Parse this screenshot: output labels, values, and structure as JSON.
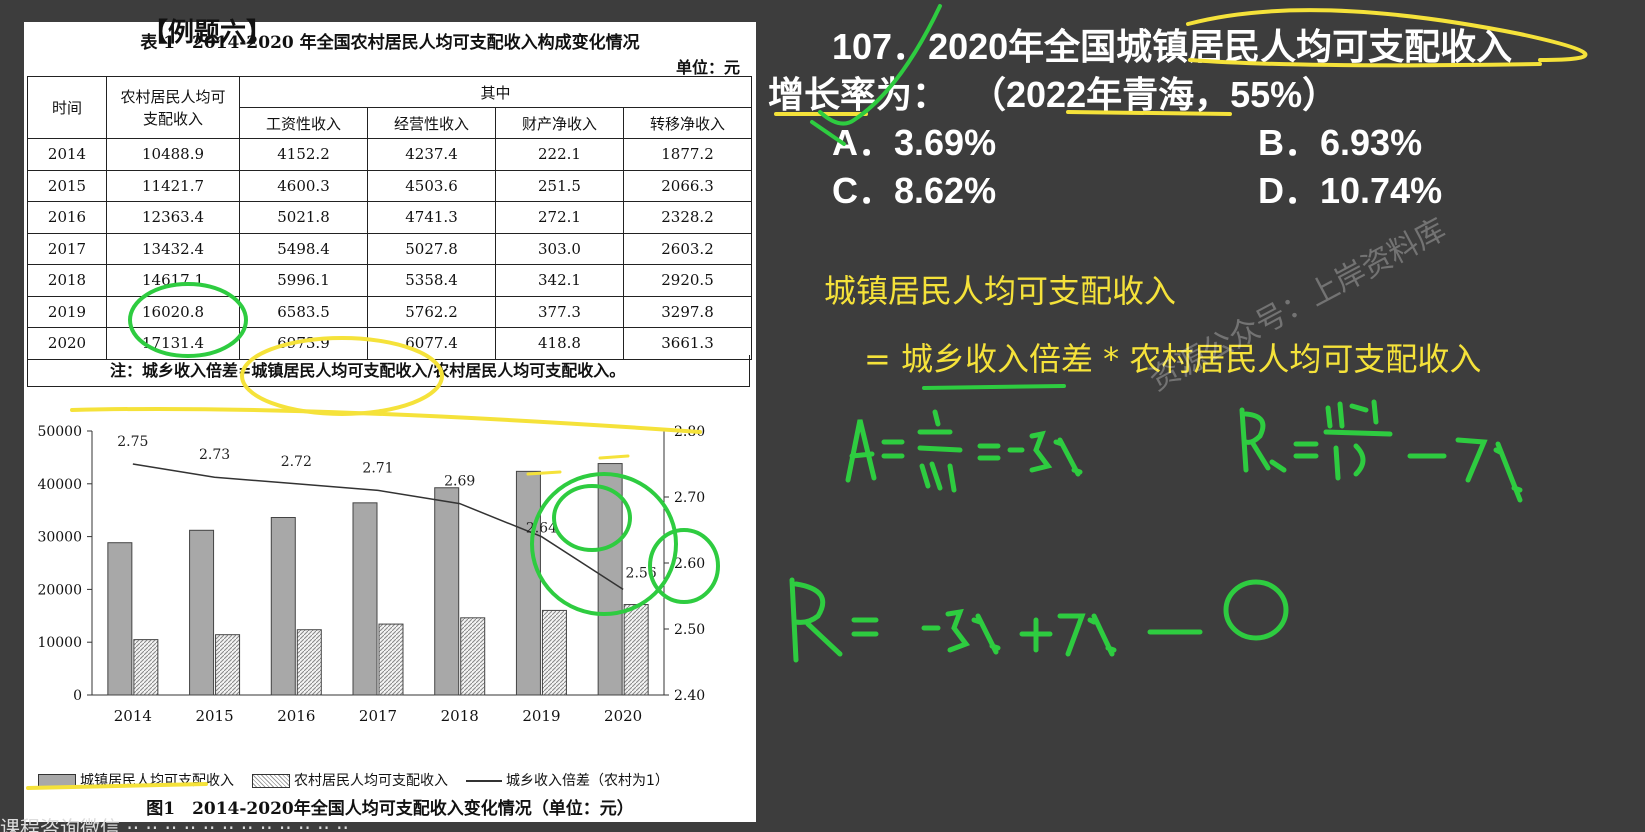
{
  "header_cut": "【例题六】",
  "table": {
    "title": "表 1　2014-2020 年全国农村居民人均可支配收入构成变化情况",
    "unit": "单位：元",
    "col_time": "时间",
    "col_total": "农村居民人均可支配收入",
    "col_group": "其中",
    "sub_cols": [
      "工资性收入",
      "经营性收入",
      "财产净收入",
      "转移净收入"
    ],
    "rows": [
      [
        "2014",
        "10488.9",
        "4152.2",
        "4237.4",
        "222.1",
        "1877.2"
      ],
      [
        "2015",
        "11421.7",
        "4600.3",
        "4503.6",
        "251.5",
        "2066.3"
      ],
      [
        "2016",
        "12363.4",
        "5021.8",
        "4741.3",
        "272.1",
        "2328.2"
      ],
      [
        "2017",
        "13432.4",
        "5498.4",
        "5027.8",
        "303.0",
        "2603.2"
      ],
      [
        "2018",
        "14617.1",
        "5996.1",
        "5358.4",
        "342.1",
        "2920.5"
      ],
      [
        "2019",
        "16020.8",
        "6583.5",
        "5762.2",
        "377.3",
        "3297.8"
      ],
      [
        "2020",
        "17131.4",
        "6973.9",
        "6077.4",
        "418.8",
        "3661.3"
      ]
    ],
    "note": "注：城乡收入倍差=城镇居民人均可支配收入/农村居民人均可支配收入。"
  },
  "chart_data": {
    "type": "bar",
    "categories": [
      "2014",
      "2015",
      "2016",
      "2017",
      "2018",
      "2019",
      "2020"
    ],
    "series": [
      {
        "name": "城镇居民人均可支配收入",
        "values": [
          28844,
          31195,
          33616,
          36396,
          39251,
          42359,
          43834
        ]
      },
      {
        "name": "农村居民人均可支配收入",
        "values": [
          10489,
          11422,
          12363,
          13432,
          14617,
          16021,
          17131
        ]
      }
    ],
    "line": {
      "name": "城乡收入倍差（农村为1）",
      "values": [
        2.75,
        2.73,
        2.72,
        2.71,
        2.69,
        2.64,
        2.56
      ],
      "labels": [
        "2.75",
        "2.73",
        "2.72",
        "2.71",
        "2.69",
        "2.64",
        "2.56"
      ]
    },
    "y_left_ticks": [
      "0",
      "10000",
      "20000",
      "30000",
      "40000",
      "50000"
    ],
    "y_left_range": [
      0,
      50000
    ],
    "y_right_ticks": [
      "2.40",
      "2.50",
      "2.60",
      "2.70",
      "2.80"
    ],
    "y_right_range": [
      2.4,
      2.8
    ],
    "caption": "图1　2014-2020年全国人均可支配收入变化情况（单位：元）",
    "colors": {
      "urban": "#a8a8a8",
      "rural": "#e8e8e8",
      "line": "#333333"
    }
  },
  "question": {
    "line1": "107．2020年全国城镇居民人均可支配收入",
    "line2a": "增长率为：",
    "line2b": "（2022年青海，55%）",
    "options": [
      {
        "letter": "A．",
        "value": "3.69%"
      },
      {
        "letter": "B．",
        "value": "6.93%"
      },
      {
        "letter": "C．",
        "value": "8.62%"
      },
      {
        "letter": "D．",
        "value": "10.74%"
      }
    ]
  },
  "explain": {
    "line1": "城镇居民人均可支配收入",
    "line2": "=  城乡收入倍差 * 农村居民人均可支配收入"
  },
  "watermark": "资源公众号：上岸资料库",
  "handwriting": {
    "eq1": "A=  -8/264  = -3%",
    "eq2": "R2 =  1140/1.7  -7%",
    "eq3": "R= -3% +7% - 0"
  },
  "bottom_strip": "课程咨询微信 ·· ··  ·· ·· ·· ··                             ·· ·· ··  ·· ·· ··"
}
